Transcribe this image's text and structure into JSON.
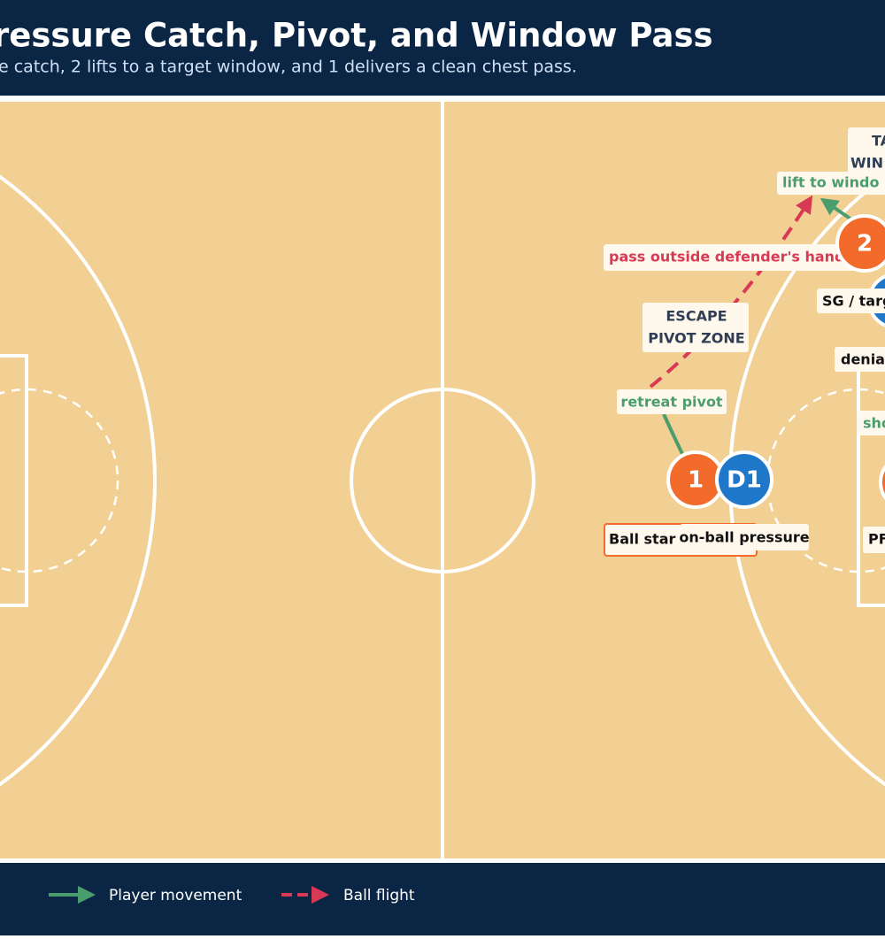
{
  "header": {
    "title": "ressure Catch, Pivot, and Window Pass",
    "subtitle": "e catch, 2 lifts to a target window, and 1 delivers a clean chest pass."
  },
  "players": [
    {
      "label": "1"
    },
    {
      "label": "D1"
    },
    {
      "label": "2"
    }
  ],
  "labels": {
    "target_window": [
      "TAR",
      "WIN"
    ],
    "lift": "lift to windo",
    "pass": "pass outside defender's hands",
    "sg": "SG / targ",
    "escape": [
      "ESCAPE",
      "PIVOT ZONE"
    ],
    "denial": "denial",
    "retreat": "retreat pivot",
    "show": "sho",
    "ball_start": "Ball star",
    "pressure": "on-ball pressure",
    "pf": "PF"
  },
  "legend": [
    {
      "label": "Player movement"
    },
    {
      "label": "Ball flight"
    }
  ]
}
